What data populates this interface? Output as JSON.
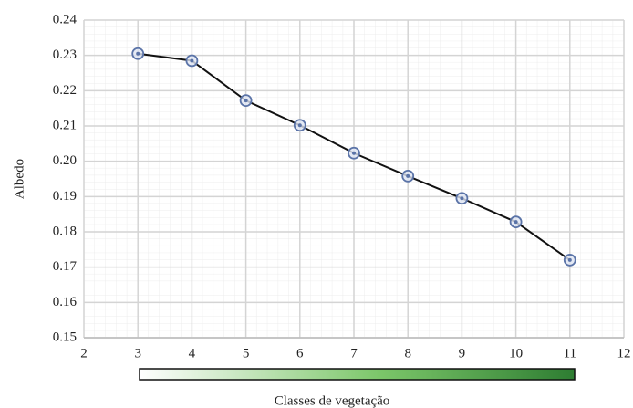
{
  "chart_data": {
    "type": "line",
    "x": [
      3,
      4,
      5,
      6,
      7,
      8,
      9,
      10,
      11
    ],
    "values": [
      0.2305,
      0.2285,
      0.2172,
      0.2102,
      0.2023,
      0.1958,
      0.1895,
      0.1828,
      0.172
    ],
    "color": "#111111",
    "marker_color": "#5b74a8",
    "xlim": [
      2,
      12
    ],
    "xticks": [
      2,
      3,
      4,
      5,
      6,
      7,
      8,
      9,
      10,
      11,
      12
    ],
    "ylim": [
      0.15,
      0.24
    ],
    "yticks": [
      0.15,
      0.16,
      0.17,
      0.18,
      0.19,
      {
        "value": 0.2,
        "label": "0.20"
      },
      0.21,
      0.22,
      0.23,
      0.24
    ],
    "grid": true,
    "xlabel": "Classes de vegetação",
    "ylabel": "Albedo"
  }
}
